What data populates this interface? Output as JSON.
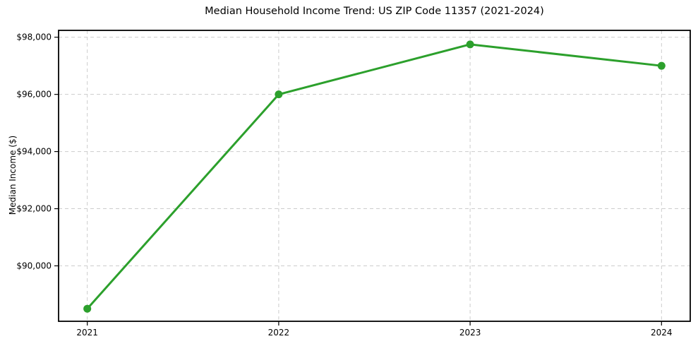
{
  "chart_data": {
    "type": "line",
    "title": "Median Household Income Trend: US ZIP Code 11357 (2021-2024)",
    "xlabel": "",
    "ylabel": "Median Income ($)",
    "x": [
      2021,
      2022,
      2023,
      2024
    ],
    "values": [
      88500,
      96000,
      97750,
      97000
    ],
    "xtick_labels": [
      "2021",
      "2022",
      "2023",
      "2024"
    ],
    "yticks": [
      90000,
      92000,
      94000,
      96000,
      98000
    ],
    "ytick_labels": [
      "$90,000",
      "$92,000",
      "$94,000",
      "$96,000",
      "$98,000"
    ],
    "xlim": [
      2020.85,
      2024.15
    ],
    "ylim": [
      88060,
      98240
    ],
    "grid": true,
    "legend": "none",
    "line_color": "#2ca02c",
    "marker": "circle",
    "grid_color": "#cccccc",
    "spine_color": "#000000",
    "background_color": "#ffffff",
    "text_color": "#000000"
  }
}
